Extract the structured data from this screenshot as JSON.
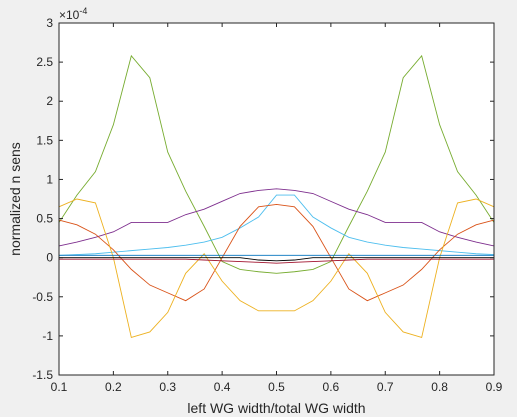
{
  "chart_data": {
    "type": "line",
    "xlabel": "left WG width/total WG width",
    "ylabel": "normalized n sens",
    "exponent_label": "×10^{-4}",
    "exponent_base": "×10",
    "exponent_power": "-4",
    "xlim": [
      0.1,
      0.9
    ],
    "ylim": [
      -1.5,
      3.0
    ],
    "xticks": [
      "0.1",
      "0.2",
      "0.3",
      "0.4",
      "0.5",
      "0.6",
      "0.7",
      "0.8",
      "0.9"
    ],
    "yticks": [
      "-1.5",
      "-1",
      "-0.5",
      "0",
      "0.5",
      "1",
      "1.5",
      "2",
      "2.5",
      "3"
    ],
    "grid": false,
    "x": [
      0.1,
      0.133,
      0.167,
      0.2,
      0.233,
      0.267,
      0.3,
      0.333,
      0.367,
      0.4,
      0.433,
      0.467,
      0.5,
      0.533,
      0.567,
      0.6,
      0.633,
      0.667,
      0.7,
      0.733,
      0.767,
      0.8,
      0.833,
      0.867,
      0.9
    ],
    "series": [
      {
        "color": "#77ac30",
        "values": [
          0.45,
          0.8,
          1.1,
          1.7,
          2.58,
          2.3,
          1.35,
          0.85,
          0.4,
          -0.05,
          -0.15,
          -0.18,
          -0.2,
          -0.18,
          -0.15,
          -0.05,
          0.4,
          0.85,
          1.35,
          2.3,
          2.58,
          1.7,
          1.1,
          0.8,
          0.45
        ]
      },
      {
        "color": "#7e2f8e",
        "values": [
          0.15,
          0.2,
          0.26,
          0.33,
          0.45,
          0.45,
          0.45,
          0.55,
          0.62,
          0.72,
          0.82,
          0.86,
          0.88,
          0.86,
          0.82,
          0.72,
          0.62,
          0.55,
          0.45,
          0.45,
          0.45,
          0.33,
          0.26,
          0.2,
          0.15
        ]
      },
      {
        "color": "#4dbeee",
        "values": [
          0.03,
          0.04,
          0.05,
          0.07,
          0.09,
          0.11,
          0.13,
          0.16,
          0.2,
          0.26,
          0.38,
          0.52,
          0.8,
          0.8,
          0.52,
          0.38,
          0.26,
          0.2,
          0.16,
          0.13,
          0.11,
          0.09,
          0.07,
          0.05,
          0.04
        ]
      },
      {
        "color": "#d95319",
        "values": [
          0.48,
          0.42,
          0.3,
          0.1,
          -0.15,
          -0.35,
          -0.45,
          -0.55,
          -0.4,
          0.0,
          0.4,
          0.65,
          0.68,
          0.65,
          0.4,
          0.0,
          -0.4,
          -0.55,
          -0.45,
          -0.35,
          -0.15,
          0.1,
          0.3,
          0.42,
          0.48
        ]
      },
      {
        "color": "#edb120",
        "values": [
          0.65,
          0.75,
          0.7,
          0.0,
          -1.02,
          -0.95,
          -0.7,
          -0.2,
          0.05,
          -0.3,
          -0.55,
          -0.68,
          -0.68,
          -0.68,
          -0.55,
          -0.3,
          0.05,
          -0.2,
          -0.7,
          -0.95,
          -1.02,
          0.0,
          0.7,
          0.75,
          0.65
        ]
      },
      {
        "color": "#0072bd",
        "values": [
          0.03,
          0.03,
          0.03,
          0.03,
          0.03,
          0.03,
          0.03,
          0.03,
          0.03,
          0.03,
          0.03,
          0.03,
          0.03,
          0.03,
          0.03,
          0.03,
          0.03,
          0.03,
          0.03,
          0.03,
          0.03,
          0.03,
          0.03,
          0.03,
          0.03
        ]
      },
      {
        "color": "#a2142f",
        "values": [
          -0.02,
          -0.02,
          -0.02,
          -0.02,
          -0.02,
          -0.02,
          -0.02,
          -0.02,
          -0.03,
          -0.04,
          -0.05,
          -0.06,
          -0.07,
          -0.06,
          -0.05,
          -0.04,
          -0.03,
          -0.02,
          -0.02,
          -0.02,
          -0.02,
          -0.02,
          -0.02,
          -0.02,
          -0.02
        ]
      },
      {
        "color": "#000000",
        "values": [
          0.0,
          0.0,
          0.0,
          0.0,
          0.0,
          0.0,
          0.0,
          0.0,
          0.0,
          0.0,
          0.0,
          -0.03,
          -0.04,
          -0.03,
          0.0,
          0.0,
          0.0,
          0.0,
          0.0,
          0.0,
          0.0,
          0.0,
          0.0,
          0.0,
          0.0
        ]
      }
    ]
  }
}
